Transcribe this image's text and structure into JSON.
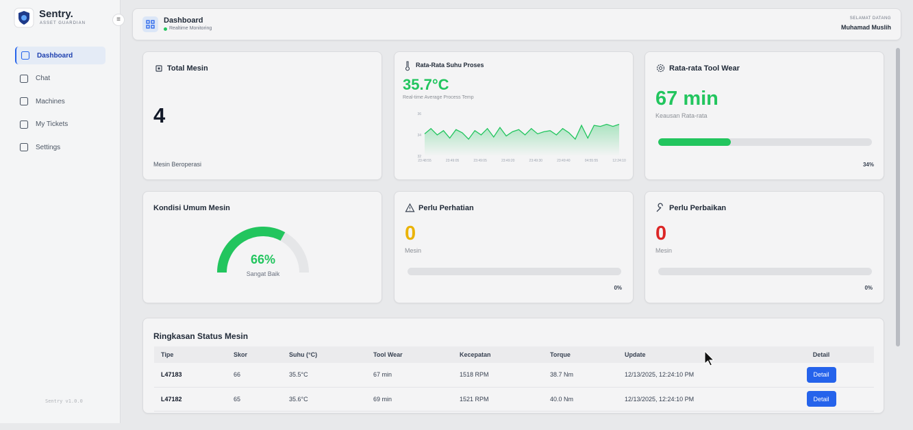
{
  "sidebar": {
    "brand": "Sentry.",
    "tagline": "ASSET GUARDIAN",
    "nav": [
      "Dashboard",
      "Chat",
      "Machines",
      "My Tickets",
      "Settings"
    ],
    "version": "Sentry v1.0.0"
  },
  "header": {
    "title": "Dashboard",
    "status": "Realtime Monitoring",
    "greeting": "SELAMAT DATANG",
    "user": "Muhamad Muslih"
  },
  "cards": {
    "total": {
      "title": "Total Mesin",
      "value": 4,
      "caption": "Mesin Beroperasi"
    },
    "temp": {
      "title": "Rata-Rata Suhu Proses",
      "value": 35.7,
      "value_label": "35.7°C",
      "caption": "Real-time Average Process Temp",
      "chart": {
        "type": "line",
        "color": "#22c55e",
        "ylim": [
          32,
          36
        ],
        "yticks": [
          36,
          34,
          32
        ],
        "xtick_labels": [
          "23:48:55",
          "23:49:05",
          "23:49:05",
          "23:49:20",
          "23:49:30",
          "23:49:40",
          "04:55:55",
          "12:24:10"
        ],
        "values": [
          34.1,
          34.6,
          34.0,
          34.4,
          33.7,
          34.5,
          34.2,
          33.6,
          34.4,
          34.0,
          34.6,
          33.8,
          34.7,
          33.9,
          34.3,
          34.5,
          34.0,
          34.6,
          34.1,
          34.3,
          34.4,
          34.0,
          34.6,
          34.2,
          33.6,
          34.9,
          33.7,
          34.9,
          34.8,
          35.0,
          34.8,
          35.0
        ]
      }
    },
    "wear": {
      "title": "Rata-rata Tool Wear",
      "value": 67,
      "value_label": "67 min",
      "caption": "Keausan Rata-rata",
      "progress": 34,
      "progress_label": "34%"
    },
    "condition": {
      "title": "Kondisi Umum Mesin",
      "value": 66,
      "value_label": "66%",
      "caption": "Sangat Baik"
    },
    "attention": {
      "title": "Perlu Perhatian",
      "value": 0,
      "caption": "Mesin",
      "progress": 0,
      "progress_label": "0%"
    },
    "repair": {
      "title": "Perlu Perbaikan",
      "value": 0,
      "caption": "Mesin",
      "progress": 0,
      "progress_label": "0%"
    }
  },
  "table": {
    "title": "Ringkasan Status Mesin",
    "columns": [
      "Tipe",
      "Skor",
      "Suhu (°C)",
      "Tool Wear",
      "Kecepatan",
      "Torque",
      "Update",
      "Detail"
    ],
    "rows": [
      [
        "L47183",
        "66",
        "35.5°C",
        "67 min",
        "1518 RPM",
        "38.7 Nm",
        "12/13/2025, 12:24:10 PM",
        "Detail"
      ],
      [
        "L47182",
        "65",
        "35.6°C",
        "69 min",
        "1521 RPM",
        "40.0 Nm",
        "12/13/2025, 12:24:10 PM",
        "Detail"
      ]
    ]
  }
}
